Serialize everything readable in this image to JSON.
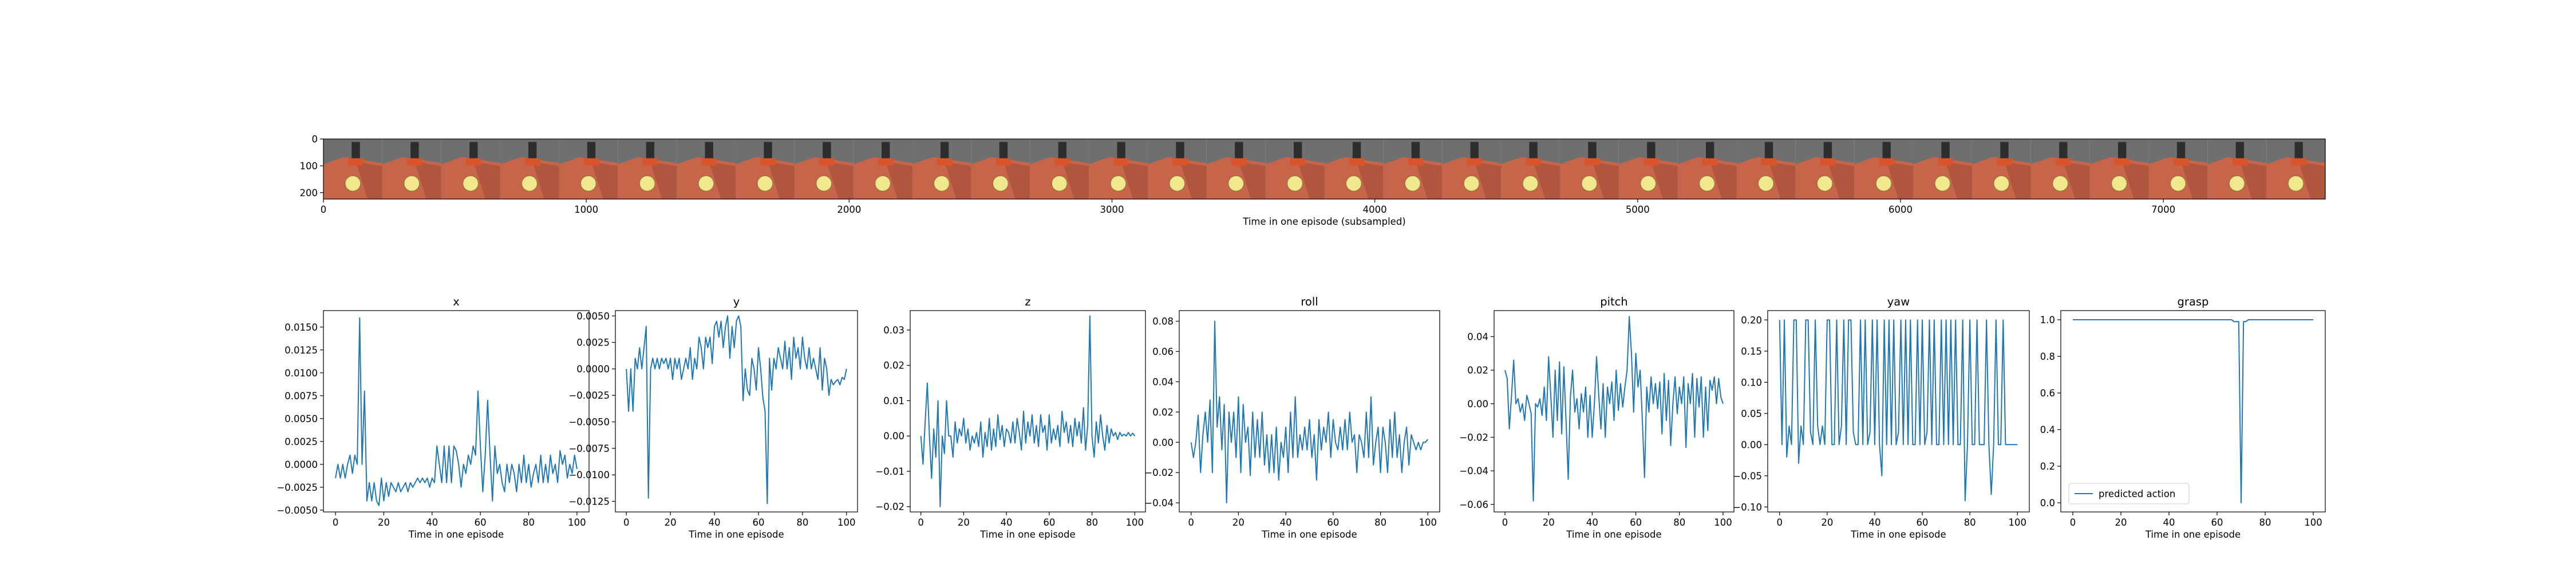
{
  "chart_data": [
    {
      "type": "image_strip",
      "xlabel": "Time in one episode (subsampled)",
      "ylabel": "",
      "xlim": [
        0,
        7616
      ],
      "ylim": [
        224,
        0
      ],
      "xticks": [
        0,
        1000,
        2000,
        3000,
        4000,
        5000,
        6000,
        7000
      ],
      "yticks": [
        0,
        100,
        200
      ],
      "frame_count": 34,
      "frame_width": 224,
      "colors": {
        "sky": "#6f6f70",
        "floor": "#c7654a",
        "floor_dark": "#9c4a36",
        "ball": "#f1e88d",
        "arm": "#2d2d2d",
        "accent": "#d9542b"
      }
    },
    {
      "type": "line",
      "title": "x",
      "xlabel": "Time in one episode",
      "xlim": [
        -5,
        105
      ],
      "ylim": [
        -0.0052,
        0.0168
      ],
      "xticks": [
        0,
        20,
        40,
        60,
        80,
        100
      ],
      "yticks": [
        -0.005,
        -0.0025,
        0.0,
        0.0025,
        0.005,
        0.0075,
        0.01,
        0.0125,
        0.015
      ],
      "ytick_labels": [
        "−0.0050",
        "−0.0025",
        "0.0000",
        "0.0025",
        "0.0050",
        "0.0075",
        "0.0100",
        "0.0125",
        "0.0150"
      ],
      "color": "#1f77b4",
      "values": [
        -0.0015,
        0.0,
        -0.0015,
        0.0,
        -0.0015,
        0.0,
        0.001,
        -0.001,
        0.001,
        0.0,
        0.016,
        0.0,
        0.008,
        -0.004,
        -0.002,
        -0.004,
        -0.002,
        -0.004,
        -0.0045,
        -0.0015,
        -0.004,
        -0.002,
        -0.0035,
        -0.002,
        -0.0025,
        -0.003,
        -0.002,
        -0.003,
        -0.0025,
        -0.002,
        -0.003,
        -0.002,
        -0.0025,
        -0.002,
        -0.0015,
        -0.002,
        -0.0015,
        -0.002,
        -0.0015,
        -0.0025,
        -0.0015,
        -0.002,
        0.002,
        0.0,
        -0.002,
        0.002,
        -0.002,
        0.002,
        -0.002,
        0.002,
        0.0015,
        0.0,
        -0.0025,
        0.0,
        -0.001,
        0.001,
        0.0,
        0.002,
        0.001,
        0.008,
        0.002,
        -0.003,
        0.001,
        0.007,
        0.001,
        -0.004,
        0.002,
        -0.001,
        0.0,
        -0.002,
        -0.003,
        0.0,
        -0.002,
        0.0,
        -0.001,
        -0.003,
        0.0,
        -0.002,
        0.001,
        -0.002,
        0.0,
        -0.0025,
        -0.001,
        0.0,
        -0.002,
        0.001,
        -0.002,
        0.0,
        -0.002,
        0.001,
        -0.001,
        0.0,
        -0.002,
        0.0015,
        0.0,
        0.001,
        -0.0015,
        0.0,
        -0.001,
        0.001,
        -0.0005
      ]
    },
    {
      "type": "line",
      "title": "y",
      "xlabel": "Time in one episode",
      "xlim": [
        -5,
        105
      ],
      "ylim": [
        -0.0135,
        0.0055
      ],
      "xticks": [
        0,
        20,
        40,
        60,
        80,
        100
      ],
      "yticks": [
        -0.0125,
        -0.01,
        -0.0075,
        -0.005,
        -0.0025,
        0.0,
        0.0025,
        0.005
      ],
      "ytick_labels": [
        "−0.0125",
        "−0.0100",
        "−0.0075",
        "−0.0050",
        "−0.0025",
        "0.0000",
        "0.0025",
        "0.0050"
      ],
      "color": "#1f77b4",
      "values": [
        0.0,
        -0.004,
        0.0,
        -0.004,
        0.001,
        0.0,
        0.002,
        0.0,
        0.002,
        0.004,
        -0.0122,
        0.0,
        0.001,
        0.0,
        0.001,
        0.0,
        0.001,
        0.0005,
        0.001,
        0.0,
        0.001,
        -0.001,
        0.001,
        0.0,
        0.001,
        -0.001,
        0.0,
        0.001,
        0.0,
        0.002,
        -0.001,
        0.001,
        0.0,
        0.003,
        0.002,
        0.0,
        0.003,
        0.002,
        0.003,
        0.0005,
        0.004,
        0.0045,
        0.003,
        0.0045,
        0.002,
        0.004,
        0.005,
        0.001,
        0.004,
        0.002,
        0.0045,
        0.005,
        0.004,
        -0.003,
        0.0,
        -0.002,
        -0.0025,
        0.001,
        0.0,
        -0.002,
        0.002,
        0.0,
        -0.0027,
        -0.004,
        -0.0127,
        0.001,
        -0.002,
        0.001,
        0.0,
        0.002,
        0.001,
        0.0,
        0.0026,
        0.0,
        0.002,
        -0.001,
        0.003,
        0.001,
        0.002,
        0.0,
        0.003,
        0.001,
        0.0,
        0.002,
        0.0,
        0.001,
        0.0,
        -0.001,
        0.002,
        -0.002,
        0.001,
        0.0,
        -0.0025,
        -0.001,
        -0.0015,
        -0.0012,
        -0.001,
        -0.0015,
        -0.0008,
        -0.001,
        0.0
      ]
    },
    {
      "type": "line",
      "title": "z",
      "xlabel": "Time in one episode",
      "xlim": [
        -5,
        105
      ],
      "ylim": [
        -0.0215,
        0.0355
      ],
      "xticks": [
        0,
        20,
        40,
        60,
        80,
        100
      ],
      "yticks": [
        -0.02,
        -0.01,
        0.0,
        0.01,
        0.02,
        0.03
      ],
      "ytick_labels": [
        "−0.02",
        "−0.01",
        "0.00",
        "0.01",
        "0.02",
        "0.03"
      ],
      "color": "#1f77b4",
      "values": [
        0.0,
        -0.008,
        0.004,
        0.015,
        0.0,
        -0.012,
        0.002,
        -0.006,
        0.01,
        -0.02,
        0.0,
        -0.005,
        0.01,
        0.0,
        0.0,
        -0.006,
        0.004,
        -0.002,
        0.002,
        0.0,
        0.005,
        -0.002,
        0.002,
        -0.004,
        0.0,
        -0.002,
        0.001,
        -0.003,
        0.004,
        -0.006,
        0.001,
        -0.003,
        0.005,
        -0.004,
        0.002,
        -0.003,
        0.006,
        -0.001,
        0.003,
        -0.003,
        0.002,
        0.001,
        -0.002,
        0.004,
        -0.002,
        0.005,
        0.001,
        -0.004,
        0.007,
        -0.002,
        0.004,
        0.0,
        0.006,
        -0.002,
        0.003,
        -0.003,
        0.006,
        0.001,
        0.003,
        -0.004,
        0.006,
        -0.002,
        0.002,
        -0.001,
        0.003,
        -0.003,
        0.007,
        0.001,
        0.004,
        -0.002,
        0.003,
        -0.003,
        0.005,
        0.0,
        0.004,
        -0.002,
        0.008,
        -0.004,
        0.003,
        0.034,
        0.0,
        -0.006,
        0.004,
        -0.002,
        0.006,
        0.0,
        -0.004,
        0.003,
        -0.002,
        0.002,
        0.0,
        0.001,
        -0.001,
        0.001,
        0.0,
        0.0005,
        0.0,
        0.001,
        0.0,
        0.0008,
        0.0
      ]
    },
    {
      "type": "line",
      "title": "roll",
      "xlabel": "Time in one episode",
      "xlim": [
        -5,
        105
      ],
      "ylim": [
        -0.046,
        0.087
      ],
      "xticks": [
        0,
        20,
        40,
        60,
        80,
        100
      ],
      "yticks": [
        -0.04,
        -0.02,
        0.0,
        0.02,
        0.04,
        0.06,
        0.08
      ],
      "ytick_labels": [
        "−0.04",
        "−0.02",
        "0.00",
        "0.02",
        "0.04",
        "0.06",
        "0.08"
      ],
      "color": "#1f77b4",
      "values": [
        0.0,
        -0.01,
        0.0,
        0.018,
        -0.02,
        0.005,
        0.02,
        0.0,
        0.028,
        -0.02,
        0.08,
        0.01,
        0.03,
        -0.005,
        0.025,
        -0.04,
        0.02,
        0.0,
        0.02,
        -0.01,
        0.03,
        -0.02,
        0.025,
        0.0,
        0.01,
        -0.022,
        0.02,
        -0.01,
        0.015,
        -0.01,
        0.02,
        -0.015,
        0.005,
        -0.02,
        0.005,
        -0.02,
        0.01,
        -0.025,
        0.0,
        -0.01,
        0.01,
        -0.02,
        0.02,
        -0.01,
        0.03,
        -0.01,
        0.005,
        -0.005,
        0.01,
        -0.005,
        0.015,
        -0.01,
        0.005,
        -0.025,
        0.015,
        -0.005,
        0.01,
        0.0,
        0.02,
        -0.01,
        0.015,
        0.0,
        -0.005,
        0.01,
        -0.005,
        0.015,
        -0.005,
        0.02,
        0.0,
        0.005,
        -0.02,
        0.005,
        0.0,
        -0.01,
        0.02,
        -0.01,
        0.03,
        -0.015,
        0.0,
        0.01,
        -0.02,
        0.01,
        0.0,
        -0.02,
        0.015,
        -0.01,
        0.02,
        -0.01,
        0.005,
        -0.02,
        0.0,
        0.01,
        -0.015,
        0.005,
        0.0,
        -0.005,
        0.0,
        -0.005,
        0.0,
        0.0,
        0.002
      ]
    },
    {
      "type": "line",
      "title": "pitch",
      "xlabel": "Time in one episode",
      "xlim": [
        -5,
        105
      ],
      "ylim": [
        -0.0645,
        0.0555
      ],
      "xticks": [
        0,
        20,
        40,
        60,
        80,
        100
      ],
      "yticks": [
        -0.06,
        -0.04,
        -0.02,
        0.0,
        0.02,
        0.04
      ],
      "ytick_labels": [
        "−0.06",
        "−0.04",
        "−0.02",
        "0.00",
        "0.02",
        "0.04"
      ],
      "color": "#1f77b4",
      "values": [
        0.02,
        0.015,
        -0.015,
        0.005,
        0.026,
        0.0,
        0.003,
        -0.005,
        0.0,
        -0.01,
        0.005,
        0.0,
        -0.006,
        -0.058,
        0.0,
        -0.002,
        0.003,
        -0.007,
        0.01,
        -0.01,
        0.028,
        0.005,
        -0.02,
        0.02,
        -0.01,
        0.025,
        -0.018,
        0.022,
        -0.01,
        -0.045,
        0.004,
        0.02,
        -0.005,
        0.003,
        -0.015,
        0.006,
        -0.005,
        0.01,
        -0.02,
        0.005,
        -0.02,
        0.0,
        0.028,
        0.005,
        -0.015,
        0.012,
        -0.02,
        0.01,
        0.0,
        0.013,
        -0.01,
        0.02,
        -0.004,
        0.012,
        -0.002,
        0.01,
        0.02,
        0.052,
        0.03,
        -0.005,
        0.03,
        0.01,
        0.02,
        -0.01,
        -0.044,
        0.01,
        -0.005,
        0.016,
        0.0,
        0.012,
        -0.003,
        0.013,
        -0.018,
        0.018,
        -0.01,
        0.014,
        -0.025,
        0.0,
        0.016,
        -0.006,
        0.01,
        0.0,
        0.016,
        -0.026,
        0.012,
        0.0,
        0.018,
        -0.02,
        0.015,
        -0.002,
        0.016,
        -0.02,
        0.01,
        -0.016,
        0.014,
        0.008,
        0.016,
        0.0,
        0.015,
        0.004,
        0.0
      ]
    },
    {
      "type": "line",
      "title": "yaw",
      "xlabel": "Time in one episode",
      "xlim": [
        -5,
        105
      ],
      "ylim": [
        -0.108,
        0.215
      ],
      "xticks": [
        0,
        20,
        40,
        60,
        80,
        100
      ],
      "yticks": [
        -0.1,
        -0.05,
        0.0,
        0.05,
        0.1,
        0.15,
        0.2
      ],
      "ytick_labels": [
        "−0.10",
        "−0.05",
        "0.00",
        "0.05",
        "0.10",
        "0.15",
        "0.20"
      ],
      "color": "#1f77b4",
      "values": [
        0.2,
        0.0,
        0.2,
        -0.02,
        0.03,
        0.0,
        0.2,
        0.2,
        -0.03,
        0.03,
        0.0,
        0.2,
        0.2,
        0.02,
        0.0,
        0.2,
        0.03,
        0.0,
        0.03,
        0.0,
        0.2,
        0.2,
        0.0,
        0.0,
        0.2,
        0.0,
        0.03,
        0.2,
        0.0,
        0.2,
        0.2,
        0.02,
        0.0,
        0.0,
        0.2,
        0.0,
        0.2,
        0.0,
        0.02,
        0.2,
        0.0,
        0.2,
        0.0,
        -0.05,
        0.2,
        0.0,
        0.2,
        0.0,
        0.2,
        0.0,
        0.02,
        0.2,
        0.0,
        0.2,
        0.0,
        0.2,
        0.0,
        0.0,
        0.2,
        0.0,
        0.2,
        0.0,
        0.02,
        0.2,
        0.0,
        0.2,
        0.0,
        0.0,
        0.2,
        0.0,
        0.2,
        0.0,
        0.2,
        0.0,
        0.2,
        0.0,
        0.0,
        0.2,
        -0.09,
        0.0,
        0.2,
        0.0,
        0.0,
        0.2,
        0.0,
        0.0,
        0.0,
        0.2,
        0.0,
        -0.08,
        0.0,
        0.2,
        0.0,
        0.0,
        0.2,
        0.0,
        0.0,
        0.0,
        0.0,
        0.0,
        0.0
      ]
    },
    {
      "type": "line",
      "title": "grasp",
      "xlabel": "Time in one episode",
      "xlim": [
        -5,
        105
      ],
      "ylim": [
        -0.05,
        1.05
      ],
      "xticks": [
        0,
        20,
        40,
        60,
        80,
        100
      ],
      "yticks": [
        0.0,
        0.2,
        0.4,
        0.6,
        0.8,
        1.0
      ],
      "ytick_labels": [
        "0.0",
        "0.2",
        "0.4",
        "0.6",
        "0.8",
        "1.0"
      ],
      "color": "#1f77b4",
      "legend": "predicted action",
      "legend_position": "lower-left",
      "values": [
        1.0,
        1.0,
        1.0,
        1.0,
        1.0,
        1.0,
        1.0,
        1.0,
        1.0,
        1.0,
        1.0,
        1.0,
        1.0,
        1.0,
        1.0,
        1.0,
        1.0,
        1.0,
        1.0,
        1.0,
        1.0,
        1.0,
        1.0,
        1.0,
        1.0,
        1.0,
        1.0,
        1.0,
        1.0,
        1.0,
        1.0,
        1.0,
        1.0,
        1.0,
        1.0,
        1.0,
        1.0,
        1.0,
        1.0,
        1.0,
        1.0,
        1.0,
        1.0,
        1.0,
        1.0,
        1.0,
        1.0,
        1.0,
        1.0,
        1.0,
        1.0,
        1.0,
        1.0,
        1.0,
        1.0,
        1.0,
        1.0,
        1.0,
        1.0,
        1.0,
        1.0,
        1.0,
        1.0,
        1.0,
        1.0,
        1.0,
        1.0,
        0.99,
        0.99,
        0.99,
        0.0,
        0.99,
        0.99,
        1.0,
        1.0,
        1.0,
        1.0,
        1.0,
        1.0,
        1.0,
        1.0,
        1.0,
        1.0,
        1.0,
        1.0,
        1.0,
        1.0,
        1.0,
        1.0,
        1.0,
        1.0,
        1.0,
        1.0,
        1.0,
        1.0,
        1.0,
        1.0,
        1.0,
        1.0,
        1.0,
        1.0
      ]
    }
  ]
}
